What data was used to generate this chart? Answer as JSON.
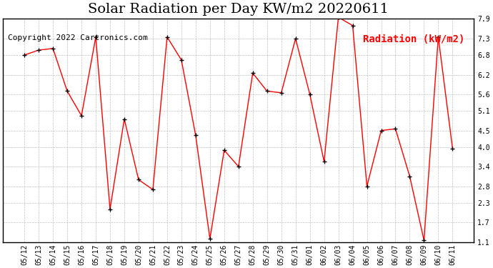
{
  "title": "Solar Radiation per Day KW/m2 20220611",
  "copyright": "Copyright 2022 Cartronics.com",
  "legend_label": "Radiation (kW/m2)",
  "dates": [
    "05/12",
    "05/13",
    "05/14",
    "05/15",
    "05/16",
    "05/17",
    "05/18",
    "05/19",
    "05/20",
    "05/21",
    "05/22",
    "05/23",
    "05/24",
    "05/25",
    "05/26",
    "05/27",
    "05/28",
    "05/29",
    "05/30",
    "05/31",
    "06/01",
    "06/02",
    "06/03",
    "06/04",
    "06/05",
    "06/06",
    "06/07",
    "06/08",
    "06/09",
    "06/10",
    "06/11"
  ],
  "values": [
    6.8,
    6.95,
    7.0,
    5.7,
    4.95,
    7.35,
    2.1,
    4.85,
    3.0,
    2.7,
    7.35,
    6.65,
    4.35,
    1.2,
    3.9,
    3.4,
    6.25,
    5.7,
    5.65,
    7.3,
    5.6,
    3.55,
    7.95,
    7.7,
    2.8,
    4.5,
    4.55,
    3.1,
    1.15,
    7.35,
    3.95
  ],
  "line_color": "red",
  "marker_color": "black",
  "grid_color": "#aaaaaa",
  "background_color": "#ffffff",
  "ylim": [
    1.1,
    7.9
  ],
  "yticks": [
    1.1,
    1.7,
    2.3,
    2.8,
    3.4,
    4.0,
    4.5,
    5.1,
    5.6,
    6.2,
    6.8,
    7.3,
    7.9
  ],
  "title_fontsize": 14,
  "copyright_fontsize": 8,
  "legend_fontsize": 10
}
